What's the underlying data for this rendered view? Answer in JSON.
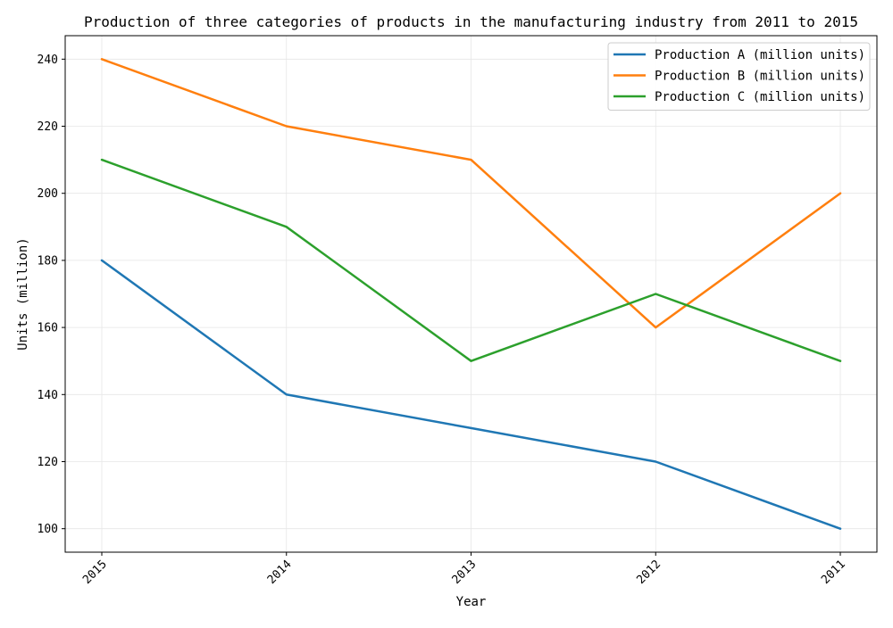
{
  "chart_data": {
    "type": "line",
    "title": "Production of three categories of products in the manufacturing industry from 2011 to 2015",
    "xlabel": "Year",
    "ylabel": "Units (million)",
    "categories": [
      "2015",
      "2014",
      "2013",
      "2012",
      "2011"
    ],
    "ylim": [
      93,
      247
    ],
    "yticks": [
      100,
      120,
      140,
      160,
      180,
      200,
      220,
      240
    ],
    "grid": true,
    "legend_position": "top-right",
    "series": [
      {
        "name": "Production A (million units)",
        "color": "#1f77b4",
        "values": [
          180,
          140,
          130,
          120,
          100
        ]
      },
      {
        "name": "Production B (million units)",
        "color": "#ff7f0e",
        "values": [
          240,
          220,
          210,
          160,
          200
        ]
      },
      {
        "name": "Production C (million units)",
        "color": "#2ca02c",
        "values": [
          210,
          190,
          150,
          170,
          150
        ]
      }
    ]
  }
}
